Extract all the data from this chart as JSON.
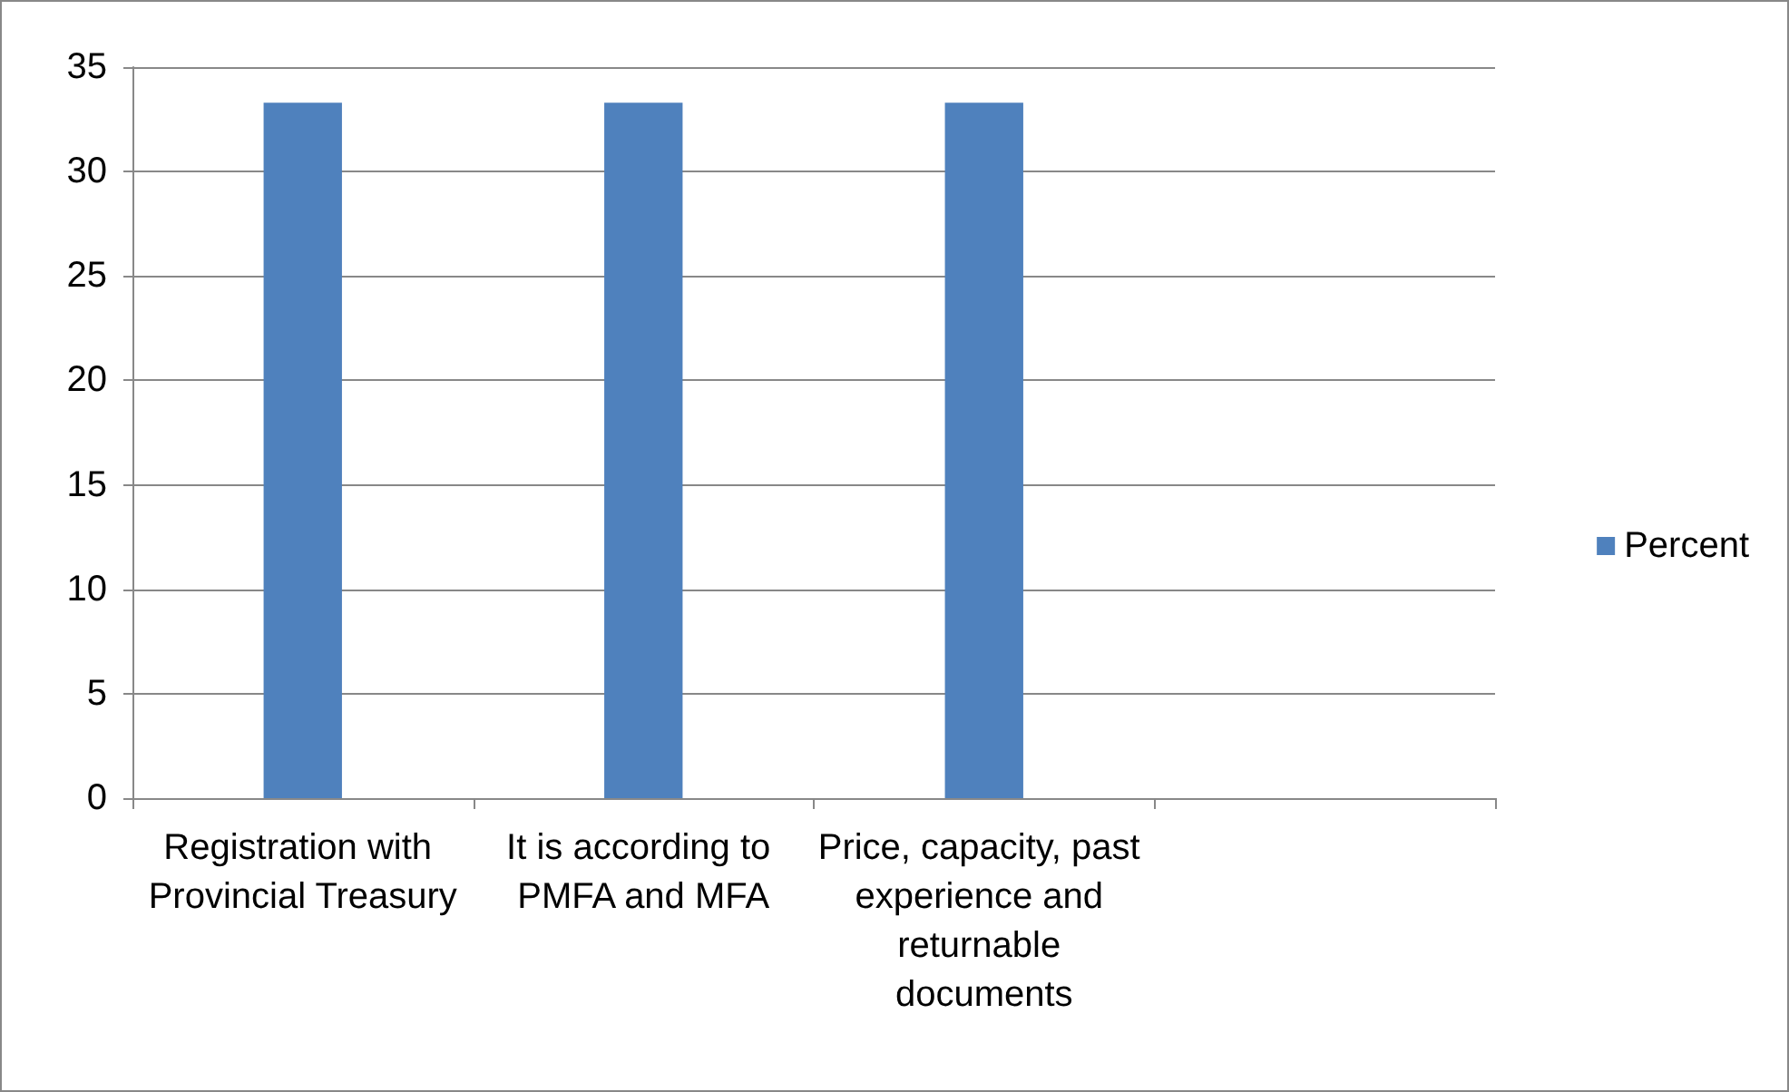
{
  "chart_data": {
    "type": "bar",
    "categories": [
      "Registration with Provincial Treasury",
      "It is according to PMFA and MFA",
      "Price, capacity, past experience and returnable documents",
      null
    ],
    "series": [
      {
        "name": "Percent",
        "color": "#4f81bd",
        "values": [
          33.3,
          33.3,
          33.3,
          null
        ]
      }
    ],
    "ylim": [
      0,
      35
    ],
    "yticks": [
      0,
      5,
      10,
      15,
      20,
      25,
      30,
      35
    ],
    "grid": "y",
    "legend": "right"
  }
}
